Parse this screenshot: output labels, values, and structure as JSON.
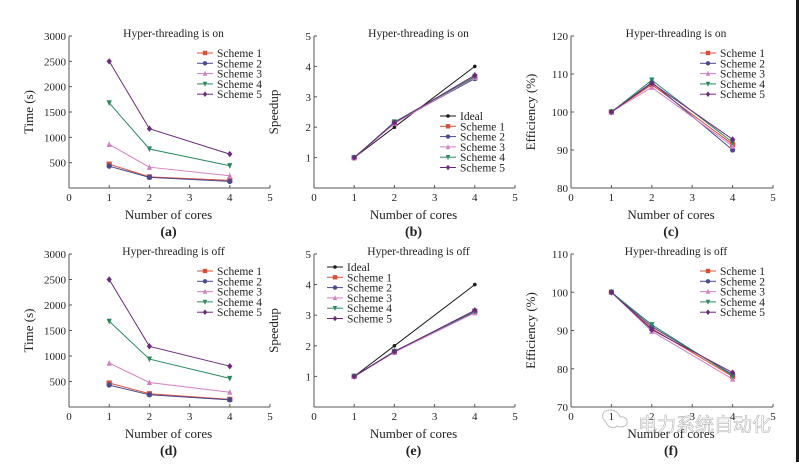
{
  "figure": {
    "watermark": "电力系统自动化",
    "series_colors": {
      "Ideal": "#1a1a1a",
      "Scheme 1": "#d9503a",
      "Scheme 2": "#4a4a8e",
      "Scheme 3": "#d27fc4",
      "Scheme 4": "#2a8a5e",
      "Scheme 5": "#6b2a7c"
    },
    "series_markers": {
      "Ideal": "dot",
      "Scheme 1": "square",
      "Scheme 2": "circle",
      "Scheme 3": "triangle-up",
      "Scheme 4": "triangle-down",
      "Scheme 5": "diamond"
    }
  },
  "chart_data": [
    {
      "id": "a",
      "type": "line",
      "panel_label": "(a)",
      "title": "Hyper-threading is on",
      "xlabel": "Number of cores",
      "ylabel": "Time (s)",
      "xlim": [
        0,
        5
      ],
      "ylim": [
        0,
        3000
      ],
      "xticks": [
        "0",
        "1",
        "2",
        "3",
        "4",
        "5"
      ],
      "yticks": [
        "500",
        "1000",
        "1500",
        "2000",
        "2500",
        "3000"
      ],
      "ytick_values": [
        500,
        1000,
        1500,
        2000,
        2500,
        3000
      ],
      "grid": false,
      "legend_position": "top-right",
      "x": [
        1,
        2,
        4
      ],
      "series": [
        {
          "name": "Scheme 1",
          "values": [
            470,
            220,
            150
          ]
        },
        {
          "name": "Scheme 2",
          "values": [
            430,
            210,
            130
          ]
        },
        {
          "name": "Scheme 3",
          "values": [
            860,
            410,
            240
          ]
        },
        {
          "name": "Scheme 4",
          "values": [
            1680,
            770,
            440
          ]
        },
        {
          "name": "Scheme 5",
          "values": [
            2500,
            1170,
            670
          ]
        }
      ]
    },
    {
      "id": "b",
      "type": "line",
      "panel_label": "(b)",
      "title": "Hyper-threading is on",
      "xlabel": "Number of cores",
      "ylabel": "Speedup",
      "xlim": [
        0,
        5
      ],
      "ylim": [
        0,
        5
      ],
      "xticks": [
        "0",
        "1",
        "2",
        "3",
        "4",
        "5"
      ],
      "yticks": [
        "1",
        "2",
        "3",
        "4",
        "5"
      ],
      "ytick_values": [
        1,
        2,
        3,
        4,
        5
      ],
      "grid": false,
      "legend_position": "bottom-right",
      "x": [
        1,
        2,
        4
      ],
      "series": [
        {
          "name": "Ideal",
          "values": [
            1,
            2,
            4
          ]
        },
        {
          "name": "Scheme 1",
          "values": [
            1,
            2.14,
            3.62
          ]
        },
        {
          "name": "Scheme 2",
          "values": [
            1,
            2.15,
            3.6
          ]
        },
        {
          "name": "Scheme 3",
          "values": [
            1,
            2.12,
            3.64
          ]
        },
        {
          "name": "Scheme 4",
          "values": [
            1,
            2.17,
            3.66
          ]
        },
        {
          "name": "Scheme 5",
          "values": [
            1,
            2.15,
            3.71
          ]
        }
      ]
    },
    {
      "id": "c",
      "type": "line",
      "panel_label": "(c)",
      "title": "Hyper-threading is on",
      "xlabel": "Number of cores",
      "ylabel": "Efficiency (%)",
      "xlim": [
        0,
        5
      ],
      "ylim": [
        80,
        120
      ],
      "xticks": [
        "0",
        "1",
        "2",
        "3",
        "4",
        "5"
      ],
      "yticks": [
        "80",
        "90",
        "100",
        "110",
        "120"
      ],
      "ytick_values": [
        80,
        90,
        100,
        110,
        120
      ],
      "grid": false,
      "legend_position": "top-right",
      "x": [
        1,
        2,
        4
      ],
      "series": [
        {
          "name": "Scheme 1",
          "values": [
            100,
            107.2,
            91.5
          ]
        },
        {
          "name": "Scheme 2",
          "values": [
            100,
            107.8,
            90.0
          ]
        },
        {
          "name": "Scheme 3",
          "values": [
            100,
            106.5,
            91.0
          ]
        },
        {
          "name": "Scheme 4",
          "values": [
            100,
            108.4,
            92.0
          ]
        },
        {
          "name": "Scheme 5",
          "values": [
            100,
            107.6,
            92.8
          ]
        }
      ]
    },
    {
      "id": "d",
      "type": "line",
      "panel_label": "(d)",
      "title": "Hyper-threading is off",
      "xlabel": "Number of cores",
      "ylabel": "Time (s)",
      "xlim": [
        0,
        5
      ],
      "ylim": [
        0,
        3000
      ],
      "xticks": [
        "0",
        "1",
        "2",
        "3",
        "4",
        "5"
      ],
      "yticks": [
        "500",
        "1000",
        "1500",
        "2000",
        "2500",
        "3000"
      ],
      "ytick_values": [
        500,
        1000,
        1500,
        2000,
        2500,
        3000
      ],
      "grid": false,
      "legend_position": "top-right",
      "x": [
        1,
        2,
        4
      ],
      "series": [
        {
          "name": "Scheme 1",
          "values": [
            470,
            260,
            150
          ]
        },
        {
          "name": "Scheme 2",
          "values": [
            430,
            240,
            140
          ]
        },
        {
          "name": "Scheme 3",
          "values": [
            860,
            480,
            290
          ]
        },
        {
          "name": "Scheme 4",
          "values": [
            1680,
            940,
            560
          ]
        },
        {
          "name": "Scheme 5",
          "values": [
            2500,
            1190,
            800
          ]
        }
      ]
    },
    {
      "id": "e",
      "type": "line",
      "panel_label": "(e)",
      "title": "Hyper-threading is off",
      "xlabel": "Number of cores",
      "ylabel": "Speedup",
      "xlim": [
        0,
        5
      ],
      "ylim": [
        0,
        5
      ],
      "xticks": [
        "0",
        "1",
        "2",
        "3",
        "4",
        "5"
      ],
      "yticks": [
        "1",
        "2",
        "3",
        "4",
        "5"
      ],
      "ytick_values": [
        1,
        2,
        3,
        4,
        5
      ],
      "grid": false,
      "legend_position": "top-left",
      "x": [
        1,
        2,
        4
      ],
      "series": [
        {
          "name": "Ideal",
          "values": [
            1,
            2,
            4
          ]
        },
        {
          "name": "Scheme 1",
          "values": [
            1,
            1.81,
            3.12
          ]
        },
        {
          "name": "Scheme 2",
          "values": [
            1,
            1.8,
            3.1
          ]
        },
        {
          "name": "Scheme 3",
          "values": [
            1,
            1.79,
            3.08
          ]
        },
        {
          "name": "Scheme 4",
          "values": [
            1,
            1.82,
            3.13
          ]
        },
        {
          "name": "Scheme 5",
          "values": [
            1,
            1.81,
            3.16
          ]
        }
      ]
    },
    {
      "id": "f",
      "type": "line",
      "panel_label": "(f)",
      "title": "Hyper-threading is off",
      "xlabel": "Number of cores",
      "ylabel": "Efficiency (%)",
      "xlim": [
        0,
        5
      ],
      "ylim": [
        70,
        110
      ],
      "xticks": [
        "0",
        "1",
        "2",
        "3",
        "4",
        "5"
      ],
      "yticks": [
        "70",
        "80",
        "90",
        "100",
        "110"
      ],
      "ytick_values": [
        70,
        80,
        90,
        100,
        110
      ],
      "grid": false,
      "legend_position": "top-right",
      "x": [
        1,
        2,
        4
      ],
      "series": [
        {
          "name": "Scheme 1",
          "values": [
            100,
            90.5,
            78.0
          ]
        },
        {
          "name": "Scheme 2",
          "values": [
            100,
            91.0,
            78.5
          ]
        },
        {
          "name": "Scheme 3",
          "values": [
            100,
            89.8,
            77.3
          ]
        },
        {
          "name": "Scheme 4",
          "values": [
            100,
            91.5,
            78.2
          ]
        },
        {
          "name": "Scheme 5",
          "values": [
            100,
            90.2,
            79.0
          ]
        }
      ]
    }
  ]
}
